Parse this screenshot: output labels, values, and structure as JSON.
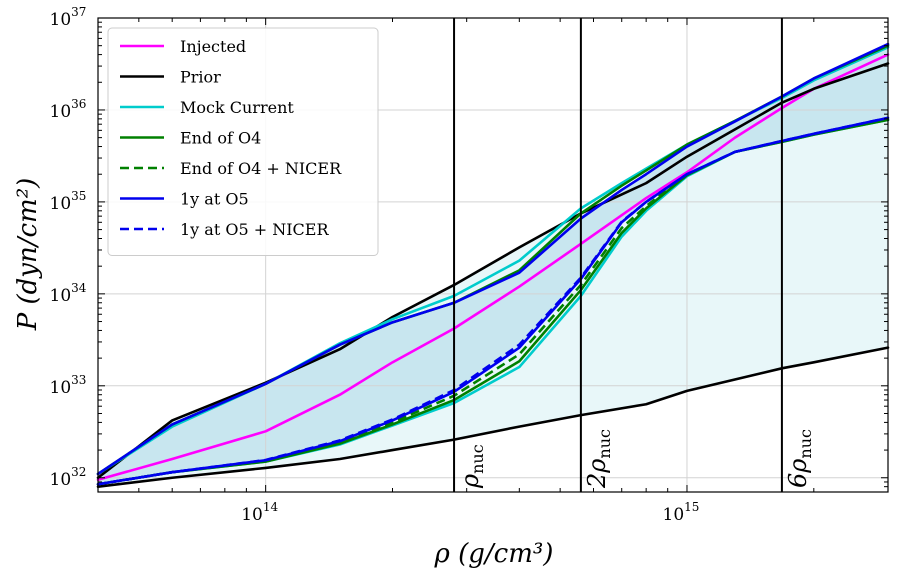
{
  "chart_data": {
    "type": "line",
    "title": "",
    "xlabel": "ρ (g/cm³)",
    "ylabel": "P (dyn/cm²)",
    "xscale": "log",
    "yscale": "log",
    "xlim": [
      40000000000000.0,
      3000000000000000.0
    ],
    "ylim": [
      7e+31,
      1e+37
    ],
    "x_ticks": [
      {
        "value": 100000000000000.0,
        "base": "10",
        "exp": "14"
      },
      {
        "value": 1000000000000000.0,
        "base": "10",
        "exp": "15"
      }
    ],
    "y_ticks": [
      {
        "value": 1e+32,
        "base": "10",
        "exp": "32"
      },
      {
        "value": 1e+33,
        "base": "10",
        "exp": "33"
      },
      {
        "value": 1e+34,
        "base": "10",
        "exp": "34"
      },
      {
        "value": 1e+35,
        "base": "10",
        "exp": "35"
      },
      {
        "value": 1e+36,
        "base": "10",
        "exp": "36"
      },
      {
        "value": 1e+37,
        "base": "10",
        "exp": "37"
      }
    ],
    "grid": true,
    "legend_position": "top-left",
    "vertical_lines": [
      {
        "x": 280000000000000.0,
        "label": "ρnuc",
        "main": "ρ",
        "sub": "nuc"
      },
      {
        "x": 560000000000000.0,
        "label": "2ρnuc",
        "main": "2ρ",
        "sub": "nuc"
      },
      {
        "x": 1680000000000000.0,
        "label": "6ρnuc",
        "main": "6ρ",
        "sub": "nuc"
      }
    ],
    "bands": [
      {
        "name": "Prior band",
        "color": "#e8f7f9",
        "x": [
          40000000000000.0,
          60000000000000.0,
          100000000000000.0,
          150000000000000.0,
          200000000000000.0,
          280000000000000.0,
          400000000000000.0,
          560000000000000.0,
          800000000000000.0,
          1000000000000000.0,
          1680000000000000.0,
          2000000000000000.0,
          3000000000000000.0
        ],
        "upper": [
          1e+32,
          4.2e+32,
          1.08e+33,
          2.5e+33,
          5.6e+33,
          1.25e+34,
          3.2e+34,
          7.5e+34,
          1.6e+35,
          3.1e+35,
          1.2e+36,
          1.7e+36,
          3.2e+36
        ],
        "lower": [
          8e+31,
          1e+32,
          1.28e+32,
          1.6e+32,
          2e+32,
          2.6e+32,
          3.6e+32,
          4.8e+32,
          6.3e+32,
          8.8e+32,
          1.55e+33,
          1.8e+33,
          2.6e+33
        ]
      },
      {
        "name": "Posterior band",
        "color": "#c8e6ef",
        "x": [
          40000000000000.0,
          60000000000000.0,
          100000000000000.0,
          150000000000000.0,
          200000000000000.0,
          280000000000000.0,
          400000000000000.0,
          560000000000000.0,
          700000000000000.0,
          800000000000000.0,
          1000000000000000.0,
          1300000000000000.0,
          1680000000000000.0,
          2000000000000000.0,
          3000000000000000.0
        ],
        "upper": [
          1.1e+32,
          3.8e+32,
          1.05e+33,
          2.8e+33,
          4.9e+33,
          8e+33,
          1.7e+34,
          6.6e+34,
          1.35e+35,
          2e+35,
          4e+35,
          7.5e+35,
          1.4e+36,
          2.2e+36,
          5.2e+36
        ],
        "lower": [
          8.5e+31,
          1.15e+32,
          1.55e+32,
          2.5e+32,
          4.2e+32,
          8.6e+32,
          2.6e+33,
          1.45e+34,
          6e+34,
          1e+35,
          2e+35,
          3.5e+35,
          4.6e+35,
          5.5e+35,
          8.2e+35
        ]
      }
    ],
    "series": [
      {
        "name": "Injected",
        "color": "#ff00ff",
        "dash": "solid",
        "x": [
          40000000000000.0,
          60000000000000.0,
          100000000000000.0,
          150000000000000.0,
          200000000000000.0,
          280000000000000.0,
          400000000000000.0,
          560000000000000.0,
          800000000000000.0,
          1000000000000000.0,
          1300000000000000.0,
          1680000000000000.0,
          2000000000000000.0,
          3000000000000000.0
        ],
        "y": [
          9.5e+31,
          1.6e+32,
          3.2e+32,
          8e+32,
          1.8e+33,
          4.2e+33,
          1.2e+34,
          3.5e+34,
          1.1e+35,
          2.1e+35,
          5e+35,
          1.05e+36,
          1.7e+36,
          4e+36
        ]
      },
      {
        "name": "Prior",
        "color": "#000000",
        "dash": "solid",
        "group": "Prior upper",
        "x": [
          40000000000000.0,
          60000000000000.0,
          100000000000000.0,
          150000000000000.0,
          200000000000000.0,
          280000000000000.0,
          400000000000000.0,
          560000000000000.0,
          800000000000000.0,
          1000000000000000.0,
          1680000000000000.0,
          2000000000000000.0,
          3000000000000000.0
        ],
        "y": [
          1e+32,
          4.2e+32,
          1.08e+33,
          2.5e+33,
          5.6e+33,
          1.25e+34,
          3.2e+34,
          7.5e+34,
          1.6e+35,
          3.1e+35,
          1.2e+36,
          1.7e+36,
          3.2e+36
        ]
      },
      {
        "name": "Prior",
        "color": "#000000",
        "dash": "solid",
        "group": "Prior lower",
        "legend": false,
        "x": [
          40000000000000.0,
          60000000000000.0,
          100000000000000.0,
          150000000000000.0,
          200000000000000.0,
          280000000000000.0,
          400000000000000.0,
          560000000000000.0,
          800000000000000.0,
          1000000000000000.0,
          1680000000000000.0,
          2000000000000000.0,
          3000000000000000.0
        ],
        "y": [
          8e+31,
          1e+32,
          1.28e+32,
          1.6e+32,
          2e+32,
          2.6e+32,
          3.6e+32,
          4.8e+32,
          6.3e+32,
          8.8e+32,
          1.55e+33,
          1.8e+33,
          2.6e+33
        ]
      },
      {
        "name": "Mock Current",
        "color": "#00cccc",
        "dash": "solid",
        "group": "Mock upper",
        "x": [
          40000000000000.0,
          60000000000000.0,
          100000000000000.0,
          150000000000000.0,
          200000000000000.0,
          280000000000000.0,
          400000000000000.0,
          560000000000000.0,
          700000000000000.0,
          800000000000000.0,
          1000000000000000.0,
          1300000000000000.0,
          1680000000000000.0,
          2000000000000000.0,
          3000000000000000.0
        ],
        "y": [
          1.1e+32,
          3.6e+32,
          1.05e+33,
          2.9e+33,
          5.3e+33,
          9.5e+33,
          2.3e+34,
          8.5e+34,
          1.6e+35,
          2.3e+35,
          4.2e+35,
          7.6e+35,
          1.35e+36,
          2.1e+36,
          4.8e+36
        ]
      },
      {
        "name": "Mock Current",
        "color": "#00cccc",
        "dash": "solid",
        "group": "Mock lower",
        "legend": false,
        "x": [
          40000000000000.0,
          60000000000000.0,
          100000000000000.0,
          150000000000000.0,
          200000000000000.0,
          280000000000000.0,
          400000000000000.0,
          560000000000000.0,
          700000000000000.0,
          800000000000000.0,
          1000000000000000.0,
          1300000000000000.0,
          1680000000000000.0,
          2000000000000000.0,
          3000000000000000.0
        ],
        "y": [
          8.5e+31,
          1.15e+32,
          1.5e+32,
          2.3e+32,
          3.7e+32,
          6.5e+32,
          1.6e+33,
          9.5e+33,
          4.2e+34,
          8e+34,
          1.9e+35,
          3.5e+35,
          4.5e+35,
          5.4e+35,
          7.8e+35
        ]
      },
      {
        "name": "End of O4",
        "color": "#008000",
        "dash": "solid",
        "group": "O4 upper",
        "x": [
          40000000000000.0,
          60000000000000.0,
          100000000000000.0,
          150000000000000.0,
          200000000000000.0,
          280000000000000.0,
          400000000000000.0,
          560000000000000.0,
          700000000000000.0,
          800000000000000.0,
          1000000000000000.0,
          1300000000000000.0,
          1680000000000000.0,
          2000000000000000.0,
          3000000000000000.0
        ],
        "y": [
          1.1e+32,
          3.8e+32,
          1.05e+33,
          2.8e+33,
          4.9e+33,
          8e+33,
          1.8e+34,
          7.5e+34,
          1.5e+35,
          2.2e+35,
          4.2e+35,
          7.6e+35,
          1.4e+36,
          2.2e+36,
          5e+36
        ]
      },
      {
        "name": "End of O4",
        "color": "#008000",
        "dash": "solid",
        "group": "O4 lower",
        "legend": false,
        "x": [
          40000000000000.0,
          60000000000000.0,
          100000000000000.0,
          150000000000000.0,
          200000000000000.0,
          280000000000000.0,
          400000000000000.0,
          560000000000000.0,
          700000000000000.0,
          800000000000000.0,
          1000000000000000.0,
          1300000000000000.0,
          1680000000000000.0,
          2000000000000000.0,
          3000000000000000.0
        ],
        "y": [
          8.5e+31,
          1.15e+32,
          1.5e+32,
          2.35e+32,
          3.8e+32,
          7e+32,
          1.85e+33,
          1.1e+34,
          4.6e+34,
          8.5e+34,
          1.95e+35,
          3.5e+35,
          4.5e+35,
          5.4e+35,
          7.8e+35
        ]
      },
      {
        "name": "End of O4 + NICER",
        "color": "#008000",
        "dash": "dashed",
        "x": [
          40000000000000.0,
          60000000000000.0,
          100000000000000.0,
          150000000000000.0,
          200000000000000.0,
          280000000000000.0,
          400000000000000.0,
          560000000000000.0,
          700000000000000.0,
          800000000000000.0,
          1000000000000000.0,
          1300000000000000.0,
          1680000000000000.0,
          2000000000000000.0,
          3000000000000000.0
        ],
        "y": [
          8.5e+31,
          1.15e+32,
          1.52e+32,
          2.45e+32,
          4e+32,
          7.8e+32,
          2.2e+33,
          1.25e+34,
          5.2e+34,
          9e+34,
          1.98e+35,
          3.5e+35,
          4.55e+35,
          5.45e+35,
          8e+35
        ]
      },
      {
        "name": "1y at O5",
        "color": "#0000ee",
        "dash": "solid",
        "group": "O5 upper",
        "x": [
          40000000000000.0,
          60000000000000.0,
          100000000000000.0,
          150000000000000.0,
          200000000000000.0,
          280000000000000.0,
          400000000000000.0,
          560000000000000.0,
          700000000000000.0,
          800000000000000.0,
          1000000000000000.0,
          1300000000000000.0,
          1680000000000000.0,
          2000000000000000.0,
          3000000000000000.0
        ],
        "y": [
          1.1e+32,
          3.8e+32,
          1.05e+33,
          2.8e+33,
          4.9e+33,
          8e+33,
          1.7e+34,
          6.6e+34,
          1.35e+35,
          2e+35,
          4e+35,
          7.5e+35,
          1.4e+36,
          2.2e+36,
          5.2e+36
        ]
      },
      {
        "name": "1y at O5",
        "color": "#0000ee",
        "dash": "solid",
        "group": "O5 lower",
        "legend": false,
        "x": [
          40000000000000.0,
          60000000000000.0,
          100000000000000.0,
          150000000000000.0,
          200000000000000.0,
          280000000000000.0,
          400000000000000.0,
          560000000000000.0,
          700000000000000.0,
          800000000000000.0,
          1000000000000000.0,
          1300000000000000.0,
          1680000000000000.0,
          2000000000000000.0,
          3000000000000000.0
        ],
        "y": [
          8.5e+31,
          1.15e+32,
          1.55e+32,
          2.5e+32,
          4.2e+32,
          8.6e+32,
          2.6e+33,
          1.45e+34,
          6e+34,
          1e+35,
          2e+35,
          3.5e+35,
          4.6e+35,
          5.5e+35,
          8.2e+35
        ]
      },
      {
        "name": "1y at O5 + NICER",
        "color": "#0000ee",
        "dash": "dashed",
        "x": [
          40000000000000.0,
          60000000000000.0,
          100000000000000.0,
          150000000000000.0,
          200000000000000.0,
          280000000000000.0,
          400000000000000.0,
          560000000000000.0,
          700000000000000.0,
          800000000000000.0,
          1000000000000000.0,
          1300000000000000.0,
          1680000000000000.0,
          2000000000000000.0,
          3000000000000000.0
        ],
        "y": [
          8.5e+31,
          1.15e+32,
          1.56e+32,
          2.55e+32,
          4.3e+32,
          9e+32,
          2.8e+33,
          1.5e+34,
          6.1e+34,
          1e+35,
          2e+35,
          3.5e+35,
          4.6e+35,
          5.5e+35,
          8.2e+35
        ]
      }
    ]
  }
}
